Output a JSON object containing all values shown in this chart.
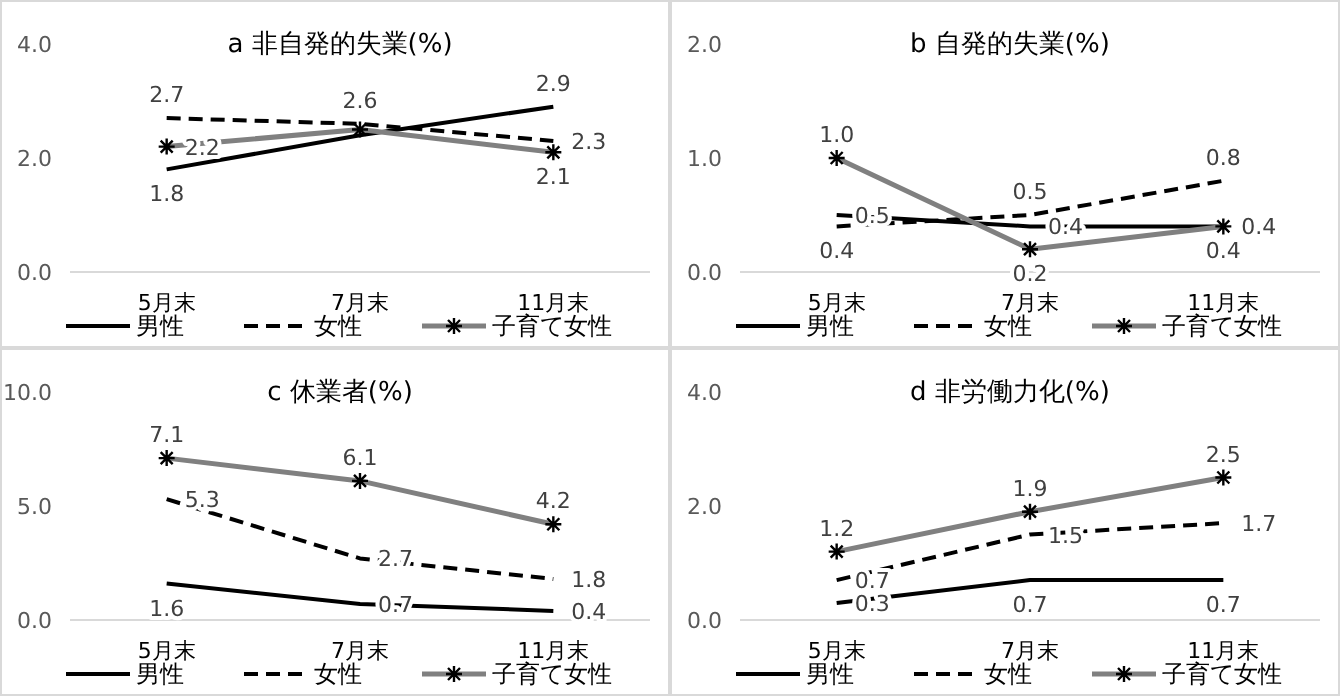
{
  "chart_data": [
    {
      "type": "line",
      "title": "a 非自発的失業(%)",
      "categories": [
        "5月末",
        "7月末",
        "11月末"
      ],
      "ylim": [
        0,
        4
      ],
      "yticks": [
        {
          "value": 0,
          "label": "0.0"
        },
        {
          "value": 2,
          "label": "2.0"
        },
        {
          "value": 4,
          "label": "4.0"
        }
      ],
      "legend": "bottom",
      "series": [
        {
          "name": "男性",
          "color": "#000000",
          "line_style": "solid",
          "marker": "none",
          "values": [
            1.8,
            2.4,
            2.9
          ],
          "value_labels": [
            "1.8",
            null,
            "2.9"
          ]
        },
        {
          "name": "女性",
          "color": "#000000",
          "line_style": "dashed",
          "marker": "none",
          "values": [
            2.7,
            2.6,
            2.3
          ],
          "value_labels": [
            "2.7",
            "2.6",
            "2.3"
          ]
        },
        {
          "name": "子育て女性",
          "color": "#808080",
          "line_style": "solid",
          "marker": "cross",
          "values": [
            2.2,
            2.5,
            2.1
          ],
          "value_labels": [
            "2.2",
            null,
            "2.1"
          ]
        }
      ]
    },
    {
      "type": "line",
      "title": "b 自発的失業(%)",
      "categories": [
        "5月末",
        "7月末",
        "11月末"
      ],
      "ylim": [
        0,
        2
      ],
      "yticks": [
        {
          "value": 0,
          "label": "0.0"
        },
        {
          "value": 1,
          "label": "1.0"
        },
        {
          "value": 2,
          "label": "2.0"
        }
      ],
      "legend": "bottom",
      "series": [
        {
          "name": "男性",
          "color": "#000000",
          "line_style": "solid",
          "marker": "none",
          "values": [
            0.5,
            0.4,
            0.4
          ],
          "value_labels": [
            "0.5",
            "0.4",
            "0.4"
          ]
        },
        {
          "name": "女性",
          "color": "#000000",
          "line_style": "dashed",
          "marker": "none",
          "values": [
            0.4,
            0.5,
            0.8
          ],
          "value_labels": [
            "0.4",
            "0.5",
            "0.8"
          ]
        },
        {
          "name": "子育て女性",
          "color": "#808080",
          "line_style": "solid",
          "marker": "cross",
          "values": [
            1.0,
            0.2,
            0.4
          ],
          "value_labels": [
            "1.0",
            "0.2",
            "0.4"
          ]
        }
      ]
    },
    {
      "type": "line",
      "title": "c 休業者(%)",
      "categories": [
        "5月末",
        "7月末",
        "11月末"
      ],
      "ylim": [
        0,
        10
      ],
      "yticks": [
        {
          "value": 0,
          "label": "0.0"
        },
        {
          "value": 5,
          "label": "5.0"
        },
        {
          "value": 10,
          "label": "10.0"
        }
      ],
      "legend": "bottom",
      "series": [
        {
          "name": "男性",
          "color": "#000000",
          "line_style": "solid",
          "marker": "none",
          "values": [
            1.6,
            0.7,
            0.4
          ],
          "value_labels": [
            "1.6",
            "0.7",
            "0.4"
          ]
        },
        {
          "name": "女性",
          "color": "#000000",
          "line_style": "dashed",
          "marker": "none",
          "values": [
            5.3,
            2.7,
            1.8
          ],
          "value_labels": [
            "5.3",
            "2.7",
            "1.8"
          ]
        },
        {
          "name": "子育て女性",
          "color": "#808080",
          "line_style": "solid",
          "marker": "cross",
          "values": [
            7.1,
            6.1,
            4.2
          ],
          "value_labels": [
            "7.1",
            "6.1",
            "4.2"
          ]
        }
      ]
    },
    {
      "type": "line",
      "title": "d 非労働力化(%)",
      "categories": [
        "5月末",
        "7月末",
        "11月末"
      ],
      "ylim": [
        0,
        4
      ],
      "yticks": [
        {
          "value": 0,
          "label": "0.0"
        },
        {
          "value": 2,
          "label": "2.0"
        },
        {
          "value": 4,
          "label": "4.0"
        }
      ],
      "legend": "bottom",
      "series": [
        {
          "name": "男性",
          "color": "#000000",
          "line_style": "solid",
          "marker": "none",
          "values": [
            0.3,
            0.7,
            0.7
          ],
          "value_labels": [
            "0.3",
            "0.7",
            "0.7"
          ]
        },
        {
          "name": "女性",
          "color": "#000000",
          "line_style": "dashed",
          "marker": "none",
          "values": [
            0.7,
            1.5,
            1.7
          ],
          "value_labels": [
            "0.7",
            "1.5",
            "1.7"
          ]
        },
        {
          "name": "子育て女性",
          "color": "#808080",
          "line_style": "solid",
          "marker": "cross",
          "values": [
            1.2,
            1.9,
            2.5
          ],
          "value_labels": [
            "1.2",
            "1.9",
            "2.5"
          ]
        }
      ]
    }
  ]
}
